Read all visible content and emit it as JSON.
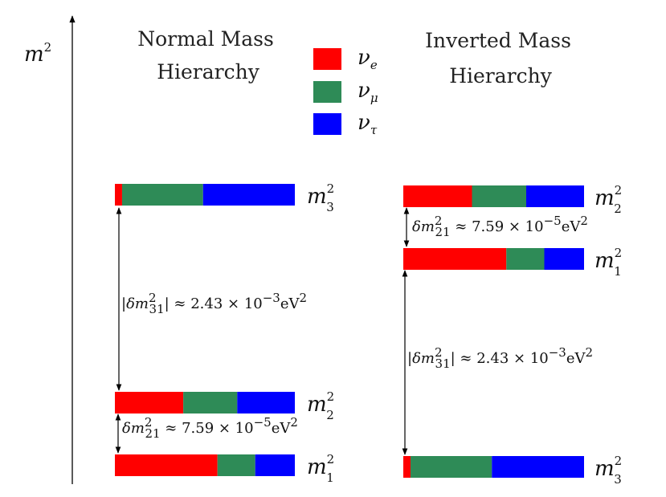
{
  "axis_label": {
    "base": "m",
    "sup": "2"
  },
  "legend": [
    {
      "symbol": "ν",
      "sub": "e",
      "color": "#ff0000"
    },
    {
      "symbol": "ν",
      "sub": "μ",
      "color": "#2e8b57"
    },
    {
      "symbol": "ν",
      "sub": "τ",
      "color": "#0000ff"
    }
  ],
  "normal": {
    "title_line1": "Normal Mass",
    "title_line2": "Hierarchy",
    "levels": [
      {
        "label": "m",
        "sub": "3",
        "sup": "2",
        "mixing": [
          0.04,
          0.45,
          0.51
        ]
      },
      {
        "label": "m",
        "sub": "2",
        "sup": "2",
        "mixing": [
          0.38,
          0.3,
          0.32
        ]
      },
      {
        "label": "m",
        "sub": "1",
        "sup": "2",
        "mixing": [
          0.57,
          0.21,
          0.22
        ]
      }
    ],
    "large_split": {
      "pre": "|δm",
      "sub": "31",
      "sup": "2",
      "post": "| ≈ 2.43 × 10",
      "exp": "−3",
      "unit": "eV",
      "unit_sup": "2"
    },
    "small_split": {
      "pre": "δm",
      "sub": "21",
      "sup": "2",
      "post": " ≈ 7.59 × 10",
      "exp": "−5",
      "unit": "eV",
      "unit_sup": "2"
    }
  },
  "inverted": {
    "title_line1": "Inverted Mass",
    "title_line2": "Hierarchy",
    "levels": [
      {
        "label": "m",
        "sub": "2",
        "sup": "2",
        "mixing": [
          0.38,
          0.3,
          0.32
        ]
      },
      {
        "label": "m",
        "sub": "1",
        "sup": "2",
        "mixing": [
          0.57,
          0.21,
          0.22
        ]
      },
      {
        "label": "m",
        "sub": "3",
        "sup": "2",
        "mixing": [
          0.04,
          0.45,
          0.51
        ]
      }
    ],
    "small_split": {
      "pre": "δm",
      "sub": "21",
      "sup": "2",
      "post": " ≈ 7.59 × 10",
      "exp": "−5",
      "unit": "eV",
      "unit_sup": "2"
    },
    "large_split": {
      "pre": "|δm",
      "sub": "31",
      "sup": "2",
      "post": "| ≈ 2.43 × 10",
      "exp": "−3",
      "unit": "eV",
      "unit_sup": "2"
    }
  }
}
